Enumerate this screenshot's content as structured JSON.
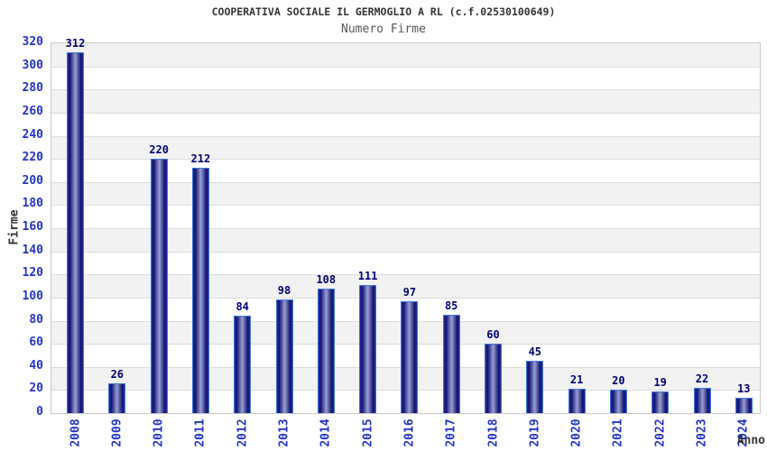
{
  "header": {
    "title": "COOPERATIVA SOCIALE IL GERMOGLIO A RL (c.f.02530100649)",
    "subtitle": "Numero Firme"
  },
  "chart_data": {
    "type": "bar",
    "title": "COOPERATIVA SOCIALE IL GERMOGLIO A RL (c.f.02530100649)",
    "subtitle": "Numero Firme",
    "categories": [
      "2008",
      "2009",
      "2010",
      "2011",
      "2012",
      "2013",
      "2014",
      "2015",
      "2016",
      "2017",
      "2018",
      "2019",
      "2020",
      "2021",
      "2022",
      "2023",
      "2024"
    ],
    "values": [
      312,
      26,
      220,
      212,
      84,
      98,
      108,
      111,
      97,
      85,
      60,
      45,
      21,
      20,
      19,
      22,
      13
    ],
    "xlabel": "Anno",
    "ylabel": "Firme",
    "ylim": [
      0,
      320
    ],
    "ytick_step": 20,
    "grid": "horizontal-alternating-bands",
    "legend": "none",
    "colors": {
      "bar_edge": "#3b76dd",
      "bar_dark": "#131370",
      "bar_mid": "#26269a",
      "bar_highlight": "#98a0d2",
      "tick_label": "#2233cc",
      "value_label": "#000078",
      "title": "#333333",
      "subtitle": "#555555",
      "band_gray": "#f2f2f2",
      "band_white": "#ffffff",
      "grid_line": "#dcdcdc",
      "plot_border": "#c9c9c9"
    }
  }
}
